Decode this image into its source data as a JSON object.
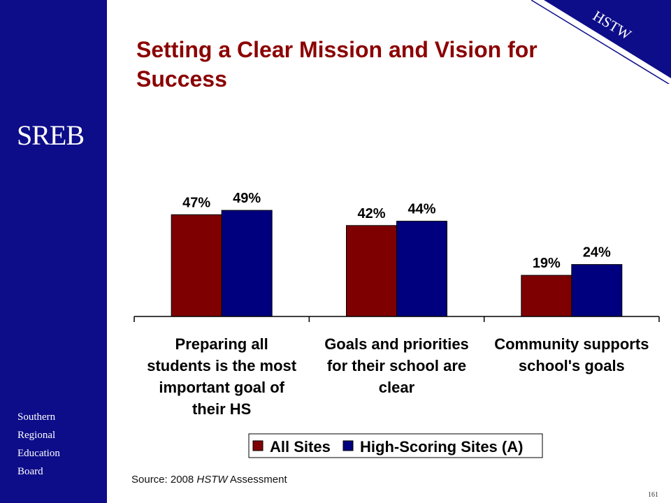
{
  "slide": {
    "title_lines": [
      "Setting a Clear Mission and Vision for",
      "Success"
    ],
    "logo": "SREB",
    "org_lines": [
      "Southern",
      "Regional",
      "Education",
      "Board"
    ],
    "corner_label": "HSTW",
    "source_prefix": "Source: 2008 ",
    "source_italic": "HSTW",
    "source_suffix": " Assessment",
    "page_number": "161"
  },
  "colors": {
    "sidebar": "#0d0d8a",
    "title": "#8b0000",
    "series_all": "#7f0000",
    "series_high": "#00007f"
  },
  "chart_data": {
    "type": "bar",
    "title": "",
    "xlabel": "",
    "ylabel": "",
    "categories": [
      [
        "Preparing all",
        "students is the most",
        "important goal of",
        "their HS"
      ],
      [
        "Goals and priorities",
        "for their school are",
        "clear"
      ],
      [
        "Community supports",
        "school's goals"
      ]
    ],
    "series": [
      {
        "name": "All Sites",
        "values": [
          47,
          42,
          19
        ],
        "labels": [
          "47%",
          "42%",
          "19%"
        ],
        "color": "#7f0000"
      },
      {
        "name": "High-Scoring Sites (A)",
        "values": [
          49,
          44,
          24
        ],
        "labels": [
          "49%",
          "44%",
          "24%"
        ],
        "color": "#00007f"
      }
    ],
    "ylim": [
      0,
      60
    ],
    "grid": false,
    "legend": "bottom"
  }
}
